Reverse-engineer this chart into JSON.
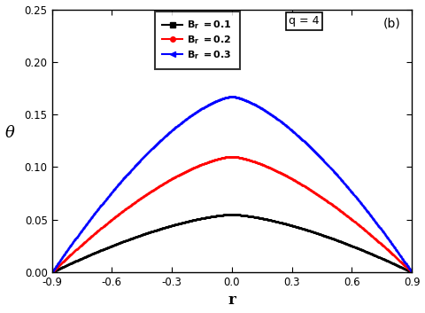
{
  "r_min": -0.9,
  "r_max": 0.9,
  "R": 0.9,
  "q": 4,
  "Br_values": [
    0.1,
    0.2,
    0.3
  ],
  "colors": [
    "black",
    "red",
    "blue"
  ],
  "markers": [
    "s",
    "o",
    "4"
  ],
  "legend_labels": [
    "B_r = 0.1",
    "B_r = 0.2",
    "B_r = 0.3"
  ],
  "xlabel": "r",
  "ylabel": "θ",
  "ylim": [
    0.0,
    0.25
  ],
  "xlim": [
    -0.9,
    0.9
  ],
  "xticks": [
    -0.9,
    -0.6,
    -0.3,
    0.0,
    0.3,
    0.6,
    0.9
  ],
  "yticks": [
    0.0,
    0.05,
    0.1,
    0.15,
    0.2,
    0.25
  ],
  "annotation_q": "q = 4",
  "annotation_b": "(b)",
  "background_color": "#ffffff",
  "n_points": 800,
  "Br_max_values": [
    0.055,
    0.11,
    0.167
  ],
  "exponent": 1.5
}
